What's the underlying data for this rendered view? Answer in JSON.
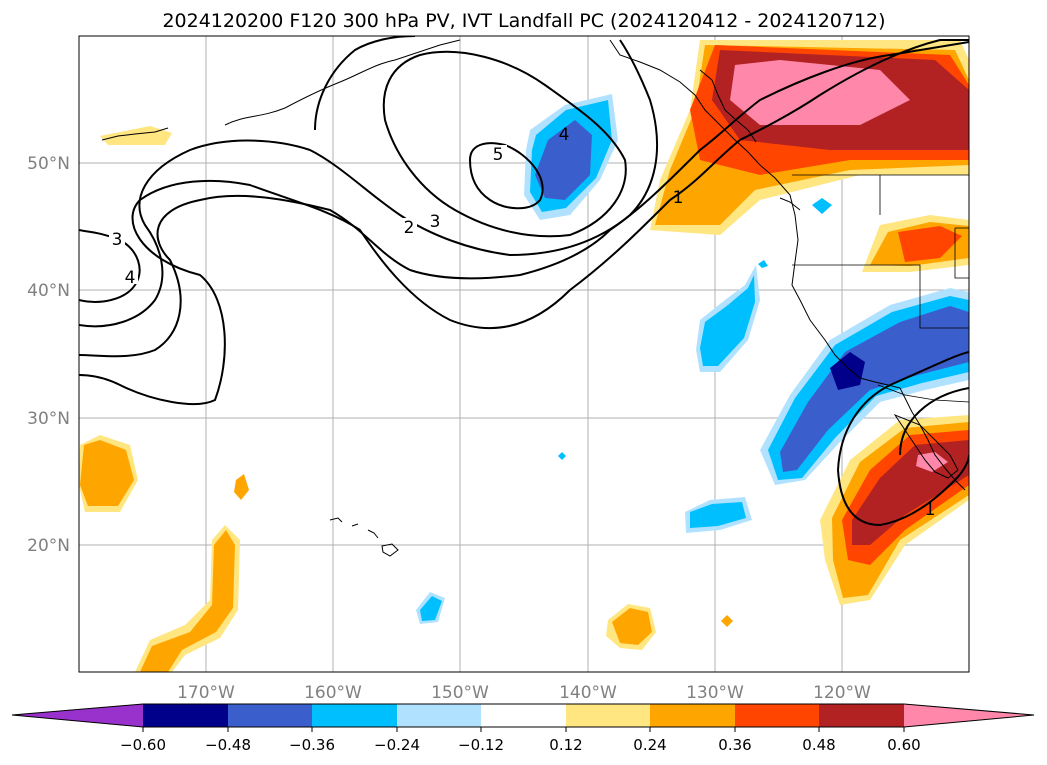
{
  "title": "2024120200 F120 300 hPa PV, IVT Landfall PC (2024120412 - 2024120712)",
  "map": {
    "lon_range": [
      180,
      110
    ],
    "lat_range": [
      10,
      60
    ],
    "lon_ticks": [
      "170°W",
      "160°W",
      "150°W",
      "140°W",
      "130°W",
      "120°W"
    ],
    "lat_ticks": [
      "50°N",
      "40°N",
      "30°N",
      "20°N"
    ],
    "grid": true,
    "coastlines": true,
    "state_borders": true
  },
  "pv_contours": {
    "color": "#000000",
    "labels": [
      "5",
      "4",
      "4",
      "3",
      "3",
      "2",
      "1",
      "1"
    ]
  },
  "colorbar": {
    "extend": "both",
    "tick_labels": [
      "−0.60",
      "−0.48",
      "−0.36",
      "−0.24",
      "−0.12",
      "0.12",
      "0.24",
      "0.36",
      "0.48",
      "0.60"
    ],
    "colors": [
      "#9932cc",
      "#00008b",
      "#3a5fcd",
      "#00bfff",
      "#b0e2ff",
      "#ffffff",
      "#ffe680",
      "#ffa500",
      "#ff4500",
      "#b22222",
      "#ff88aa"
    ]
  }
}
